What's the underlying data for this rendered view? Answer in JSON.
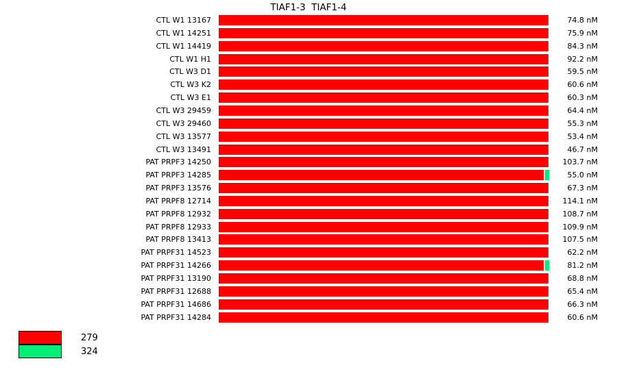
{
  "colors": {
    "bar_red": "#ff0000",
    "bar_green": "#00ee76",
    "background": "#ffffff",
    "text": "#000000"
  },
  "chart_data": {
    "type": "bar",
    "orientation": "horizontal",
    "title": "TIAF1-3  TIAF1-4",
    "unit": "nM",
    "legend": {
      "position": "bottom-left",
      "entries": [
        {
          "label": "279",
          "color": "#ff0000"
        },
        {
          "label": "324",
          "color": "#00ee76"
        }
      ]
    },
    "rows": [
      {
        "label": "CTL W1 13167",
        "value": 74.8,
        "value_label": "74.8 nM",
        "green_tip": false
      },
      {
        "label": "CTL W1 14251",
        "value": 75.9,
        "value_label": "75.9 nM",
        "green_tip": false
      },
      {
        "label": "CTL W1 14419",
        "value": 84.3,
        "value_label": "84.3 nM",
        "green_tip": false
      },
      {
        "label": "CTL W1 H1",
        "value": 92.2,
        "value_label": "92.2 nM",
        "green_tip": false
      },
      {
        "label": "CTL W3 D1",
        "value": 59.5,
        "value_label": "59.5 nM",
        "green_tip": false
      },
      {
        "label": "CTL W3 K2",
        "value": 60.6,
        "value_label": "60.6 nM",
        "green_tip": false
      },
      {
        "label": "CTL W3 E1",
        "value": 60.3,
        "value_label": "60.3 nM",
        "green_tip": false
      },
      {
        "label": "CTL W3 29459",
        "value": 64.4,
        "value_label": "64.4 nM",
        "green_tip": false
      },
      {
        "label": "CTL W3 29460",
        "value": 55.3,
        "value_label": "55.3 nM",
        "green_tip": false
      },
      {
        "label": "CTL W3 13577",
        "value": 53.4,
        "value_label": "53.4 nM",
        "green_tip": false
      },
      {
        "label": "CTL W3 13491",
        "value": 46.7,
        "value_label": "46.7 nM",
        "green_tip": false
      },
      {
        "label": "PAT PRPF3 14250",
        "value": 103.7,
        "value_label": "103.7 nM",
        "green_tip": false
      },
      {
        "label": "PAT PRPF3 14285",
        "value": 55.0,
        "value_label": "55.0 nM",
        "green_tip": true
      },
      {
        "label": "PAT PRPF3 13576",
        "value": 67.3,
        "value_label": "67.3 nM",
        "green_tip": false
      },
      {
        "label": "PAT PRPF8 12714",
        "value": 114.1,
        "value_label": "114.1 nM",
        "green_tip": false
      },
      {
        "label": "PAT PRPF8 12932",
        "value": 108.7,
        "value_label": "108.7 nM",
        "green_tip": false
      },
      {
        "label": "PAT PRPF8 12933",
        "value": 109.9,
        "value_label": "109.9 nM",
        "green_tip": false
      },
      {
        "label": "PAT PRPF8 13413",
        "value": 107.5,
        "value_label": "107.5 nM",
        "green_tip": false
      },
      {
        "label": "PAT PRPF31 14523",
        "value": 62.2,
        "value_label": "62.2 nM",
        "green_tip": false
      },
      {
        "label": "PAT PRPF31 14266",
        "value": 81.2,
        "value_label": "81.2 nM",
        "green_tip": true
      },
      {
        "label": "PAT PRPF31 13190",
        "value": 68.8,
        "value_label": "68.8 nM",
        "green_tip": false
      },
      {
        "label": "PAT PRPF31 12688",
        "value": 65.4,
        "value_label": "65.4 nM",
        "green_tip": false
      },
      {
        "label": "PAT PRPF31 14686",
        "value": 66.3,
        "value_label": "66.3 nM",
        "green_tip": false
      },
      {
        "label": "PAT PRPF31 14284",
        "value": 60.6,
        "value_label": "60.6 nM",
        "green_tip": false
      }
    ]
  }
}
